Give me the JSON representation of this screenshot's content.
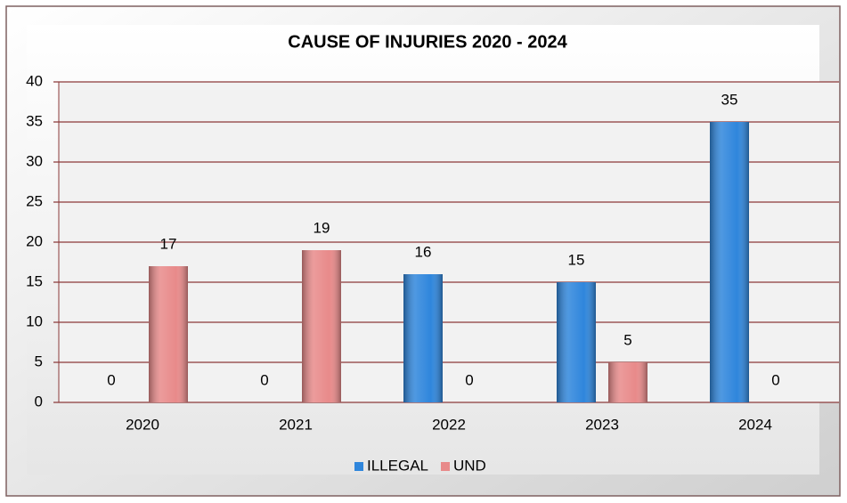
{
  "chart_data": {
    "type": "bar",
    "title": "CAUSE OF INJURIES 2020 - 2024",
    "categories": [
      "2020",
      "2021",
      "2022",
      "2023",
      "2024"
    ],
    "series": [
      {
        "name": "ILLEGAL",
        "color": "#2f86dc",
        "values": [
          0,
          0,
          16,
          15,
          35
        ]
      },
      {
        "name": "UND",
        "color": "#e88a8a",
        "values": [
          17,
          19,
          0,
          5,
          0
        ]
      }
    ],
    "ylim": [
      0,
      40
    ],
    "yticks": [
      0,
      5,
      10,
      15,
      20,
      25,
      30,
      35,
      40
    ],
    "grid": true,
    "legend": "bottom"
  }
}
